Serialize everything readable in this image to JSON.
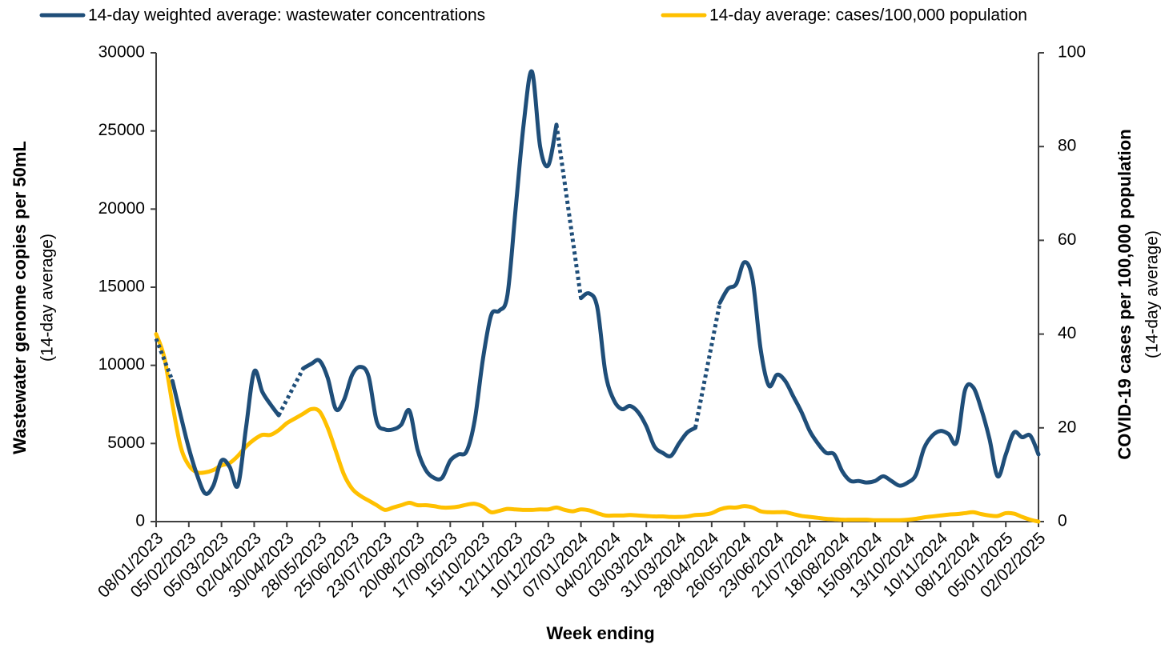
{
  "chart_data": {
    "type": "line",
    "legend_position": "top",
    "x_label": "Week ending",
    "y_label": "Wastewater genome copies per 50mL",
    "y_label_sub": "(14-day average)",
    "y2_label": "COVID-19 cases per 100,000 population",
    "y2_label_sub": "(14-day average)",
    "categories": [
      "08/01/2023",
      null,
      null,
      null,
      "05/02/2023",
      null,
      null,
      null,
      "05/03/2023",
      null,
      null,
      null,
      "02/04/2023",
      null,
      null,
      null,
      "30/04/2023",
      null,
      null,
      null,
      "28/05/2023",
      null,
      null,
      null,
      "25/06/2023",
      null,
      null,
      null,
      "23/07/2023",
      null,
      null,
      null,
      "20/08/2023",
      null,
      null,
      null,
      "17/09/2023",
      null,
      null,
      null,
      "15/10/2023",
      null,
      null,
      null,
      "12/11/2023",
      null,
      null,
      null,
      "10/12/2023",
      null,
      null,
      null,
      "07/01/2024",
      null,
      null,
      null,
      "04/02/2024",
      null,
      null,
      null,
      "03/03/2024",
      null,
      null,
      null,
      "31/03/2024",
      null,
      null,
      null,
      "28/04/2024",
      null,
      null,
      null,
      "26/05/2024",
      null,
      null,
      null,
      "23/06/2024",
      null,
      null,
      null,
      "21/07/2024",
      null,
      null,
      null,
      "18/08/2024",
      null,
      null,
      null,
      "15/09/2024",
      null,
      null,
      null,
      "13/10/2024",
      null,
      null,
      null,
      "10/11/2024",
      null,
      null,
      null,
      "08/12/2024",
      null,
      null,
      null,
      "05/01/2025",
      null,
      null,
      null,
      "02/02/2025"
    ],
    "series": [
      {
        "name": "14-day weighted average: wastewater concentrations",
        "color": "#1f4e79",
        "axis": "y",
        "values": [
          11700,
          null,
          9000,
          6800,
          4700,
          3000,
          1800,
          2300,
          3900,
          3500,
          2300,
          6000,
          9600,
          8300,
          7500,
          6800,
          null,
          null,
          9800,
          10100,
          10300,
          9200,
          7200,
          7800,
          9400,
          9900,
          9300,
          6400,
          5900,
          5900,
          6200,
          7100,
          4600,
          3300,
          2800,
          2800,
          3900,
          4300,
          4500,
          6500,
          10400,
          13200,
          13500,
          14500,
          20000,
          25500,
          28800,
          24000,
          22800,
          25400,
          null,
          null,
          14300,
          14600,
          13700,
          9500,
          7800,
          7200,
          7400,
          7000,
          6100,
          4800,
          4400,
          4200,
          5000,
          5700,
          6000,
          null,
          null,
          14000,
          14900,
          15200,
          16600,
          15500,
          11000,
          8700,
          9400,
          9000,
          8000,
          7000,
          5800,
          5000,
          4400,
          4300,
          3200,
          2600,
          2600,
          2500,
          2600,
          2900,
          2600,
          2300,
          2500,
          3000,
          4700,
          5500,
          5800,
          5600,
          5100,
          8400,
          8600,
          7200,
          5300,
          2900,
          4300,
          5700,
          5400,
          5500,
          4300
        ]
      },
      {
        "name": "14-day average: cases/100,000 population",
        "color": "#ffc000",
        "axis": "y2",
        "values": [
          40,
          35,
          25,
          16,
          12,
          10.5,
          10.5,
          11,
          12,
          12.5,
          14,
          16,
          17.5,
          18.5,
          18.5,
          19.5,
          21,
          22,
          23,
          24,
          23.5,
          20,
          15,
          10,
          7,
          5.5,
          4.5,
          3.5,
          2.5,
          3,
          3.5,
          4,
          3.5,
          3.5,
          3.3,
          3,
          3,
          3.2,
          3.6,
          3.8,
          3.2,
          2,
          2.3,
          2.7,
          2.6,
          2.5,
          2.5,
          2.6,
          2.6,
          3,
          2.5,
          2.2,
          2.6,
          2.4,
          1.8,
          1.3,
          1.3,
          1.3,
          1.4,
          1.3,
          1.2,
          1.1,
          1.1,
          1,
          1,
          1.1,
          1.4,
          1.5,
          1.8,
          2.6,
          3,
          3,
          3.3,
          3,
          2.2,
          2,
          2,
          2,
          1.6,
          1.2,
          1,
          0.8,
          0.6,
          0.5,
          0.4,
          0.4,
          0.4,
          0.4,
          0.3,
          0.3,
          0.3,
          0.3,
          0.4,
          0.6,
          0.9,
          1.1,
          1.3,
          1.5,
          1.6,
          1.8,
          2,
          1.6,
          1.3,
          1.2,
          1.8,
          1.7,
          1,
          0.4,
          0
        ]
      }
    ],
    "ylim": [
      0,
      30000
    ],
    "yticks": [
      0,
      5000,
      10000,
      15000,
      20000,
      25000,
      30000
    ],
    "y2lim": [
      0,
      100
    ],
    "y2ticks": [
      0,
      20,
      40,
      60,
      80,
      100
    ],
    "grid": false
  }
}
